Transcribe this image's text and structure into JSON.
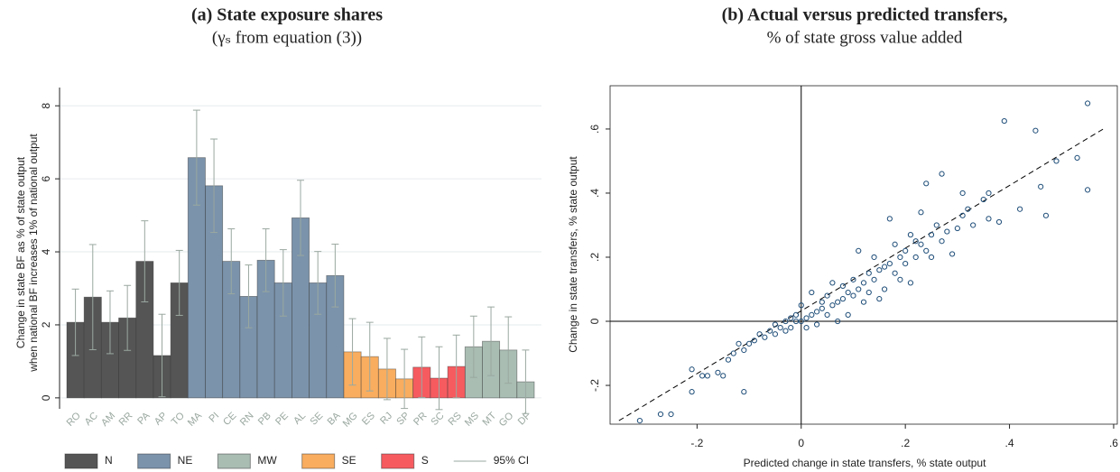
{
  "chart_data": [
    {
      "type": "bar",
      "title": "(a) State exposure shares",
      "subtitle": "(γₛ from equation (3))",
      "ylabel": [
        "Change in state BF as % of state output",
        "when national BF increases 1% of national output"
      ],
      "categories": [
        "RO",
        "AC",
        "AM",
        "RR",
        "PA",
        "AP",
        "TO",
        "MA",
        "PI",
        "CE",
        "RN",
        "PB",
        "PE",
        "AL",
        "SE",
        "BA",
        "MG",
        "ES",
        "RJ",
        "SP",
        "PR",
        "SC",
        "RS",
        "MS",
        "MT",
        "GO",
        "DF"
      ],
      "ylim": [
        -0.3,
        8.5
      ],
      "yticks": [
        0,
        2,
        4,
        6,
        8
      ],
      "grid": true,
      "ci_label": "95% CI",
      "ci_color": "#9aa8a0",
      "series": [
        {
          "name": "N",
          "color": "#555555",
          "values": [
            2.07,
            2.76,
            2.07,
            2.19,
            3.74,
            1.16,
            3.15,
            null,
            null,
            null,
            null,
            null,
            null,
            null,
            null,
            null,
            null,
            null,
            null,
            null,
            null,
            null,
            null,
            null,
            null,
            null,
            null
          ],
          "ci_low": [
            1.16,
            1.32,
            1.21,
            1.3,
            2.63,
            0.03,
            2.26,
            null,
            null,
            null,
            null,
            null,
            null,
            null,
            null,
            null,
            null,
            null,
            null,
            null,
            null,
            null,
            null,
            null,
            null,
            null,
            null
          ],
          "ci_high": [
            2.98,
            4.2,
            2.93,
            3.08,
            4.85,
            2.29,
            4.04,
            null,
            null,
            null,
            null,
            null,
            null,
            null,
            null,
            null,
            null,
            null,
            null,
            null,
            null,
            null,
            null,
            null,
            null,
            null,
            null
          ]
        },
        {
          "name": "NE",
          "color": "#7b93ab",
          "values": [
            null,
            null,
            null,
            null,
            null,
            null,
            null,
            6.58,
            5.81,
            3.74,
            2.78,
            3.77,
            3.15,
            4.93,
            3.15,
            3.35,
            null,
            null,
            null,
            null,
            null,
            null,
            null,
            null,
            null,
            null,
            null
          ],
          "ci_low": [
            null,
            null,
            null,
            null,
            null,
            null,
            null,
            5.28,
            4.53,
            2.85,
            1.92,
            2.91,
            2.24,
            3.9,
            2.29,
            2.49,
            null,
            null,
            null,
            null,
            null,
            null,
            null,
            null,
            null,
            null,
            null
          ],
          "ci_high": [
            null,
            null,
            null,
            null,
            null,
            null,
            null,
            7.88,
            7.09,
            4.63,
            3.64,
            4.63,
            4.06,
            5.96,
            4.01,
            4.21,
            null,
            null,
            null,
            null,
            null,
            null,
            null,
            null,
            null,
            null,
            null
          ]
        },
        {
          "name": "MW",
          "color": "#a9bdb3",
          "values": [
            null,
            null,
            null,
            null,
            null,
            null,
            null,
            null,
            null,
            null,
            null,
            null,
            null,
            null,
            null,
            null,
            null,
            null,
            null,
            null,
            null,
            null,
            null,
            1.4,
            1.55,
            1.31,
            0.44
          ],
          "ci_low": [
            null,
            null,
            null,
            null,
            null,
            null,
            null,
            null,
            null,
            null,
            null,
            null,
            null,
            null,
            null,
            null,
            null,
            null,
            null,
            null,
            null,
            null,
            null,
            0.56,
            0.61,
            0.4,
            -0.43
          ],
          "ci_high": [
            null,
            null,
            null,
            null,
            null,
            null,
            null,
            null,
            null,
            null,
            null,
            null,
            null,
            null,
            null,
            null,
            null,
            null,
            null,
            null,
            null,
            null,
            null,
            2.24,
            2.49,
            2.22,
            1.31
          ]
        },
        {
          "name": "SE",
          "color": "#f9ad5f",
          "values": [
            null,
            null,
            null,
            null,
            null,
            null,
            null,
            null,
            null,
            null,
            null,
            null,
            null,
            null,
            null,
            null,
            1.26,
            1.13,
            0.79,
            0.52,
            null,
            null,
            null,
            null,
            null,
            null,
            null
          ],
          "ci_low": [
            null,
            null,
            null,
            null,
            null,
            null,
            null,
            null,
            null,
            null,
            null,
            null,
            null,
            null,
            null,
            null,
            0.35,
            0.19,
            -0.05,
            -0.29,
            null,
            null,
            null,
            null,
            null,
            null,
            null
          ],
          "ci_high": [
            null,
            null,
            null,
            null,
            null,
            null,
            null,
            null,
            null,
            null,
            null,
            null,
            null,
            null,
            null,
            null,
            2.17,
            2.07,
            1.63,
            1.33,
            null,
            null,
            null,
            null,
            null,
            null,
            null
          ]
        },
        {
          "name": "S",
          "color": "#f65b60",
          "values": [
            null,
            null,
            null,
            null,
            null,
            null,
            null,
            null,
            null,
            null,
            null,
            null,
            null,
            null,
            null,
            null,
            null,
            null,
            null,
            null,
            0.84,
            0.54,
            0.86,
            null,
            null,
            null,
            null
          ],
          "ci_low": [
            null,
            null,
            null,
            null,
            null,
            null,
            null,
            null,
            null,
            null,
            null,
            null,
            null,
            null,
            null,
            null,
            null,
            null,
            null,
            null,
            0.01,
            -0.32,
            0.0,
            null,
            null,
            null,
            null
          ],
          "ci_high": [
            null,
            null,
            null,
            null,
            null,
            null,
            null,
            null,
            null,
            null,
            null,
            null,
            null,
            null,
            null,
            null,
            null,
            null,
            null,
            null,
            1.67,
            1.4,
            1.72,
            null,
            null,
            null,
            null
          ]
        }
      ]
    },
    {
      "type": "scatter",
      "title": "(b) Actual versus predicted transfers,",
      "subtitle": "% of state gross value added",
      "xlabel": "Predicted change in state transfers, % state output",
      "ylabel": "Change in state transfers, % state output",
      "xlim": [
        -0.367,
        0.607
      ],
      "ylim": [
        -0.321,
        0.735
      ],
      "xticks": [
        {
          "value": -0.2,
          "label": "-.2"
        },
        0,
        {
          "value": 0.2,
          "label": ".2"
        },
        {
          "value": 0.4,
          "label": ".4"
        },
        {
          "value": 0.6,
          "label": ".6"
        }
      ],
      "yticks": [
        {
          "value": -0.2,
          "label": "-.2"
        },
        0,
        {
          "value": 0.2,
          "label": ".2"
        },
        {
          "value": 0.4,
          "label": ".4"
        },
        {
          "value": 0.6,
          "label": ".6"
        }
      ],
      "zero_lines": true,
      "color": "#1f4e79",
      "fit_line": {
        "x": [
          -0.35,
          0.58
        ],
        "y": [
          -0.31,
          0.6
        ]
      },
      "x": [
        -0.31,
        -0.27,
        -0.25,
        -0.21,
        -0.21,
        -0.19,
        -0.18,
        -0.16,
        -0.14,
        -0.15,
        -0.13,
        -0.12,
        -0.11,
        -0.11,
        -0.1,
        -0.09,
        -0.08,
        -0.07,
        -0.06,
        -0.05,
        -0.05,
        -0.04,
        -0.03,
        -0.03,
        -0.02,
        -0.02,
        -0.01,
        -0.01,
        0.0,
        0.0,
        0.01,
        0.01,
        0.02,
        0.02,
        0.03,
        0.03,
        0.04,
        0.04,
        0.05,
        0.05,
        0.06,
        0.06,
        0.07,
        0.07,
        0.08,
        0.08,
        0.09,
        0.09,
        0.1,
        0.1,
        0.11,
        0.11,
        0.12,
        0.12,
        0.13,
        0.13,
        0.14,
        0.14,
        0.15,
        0.15,
        0.16,
        0.16,
        0.17,
        0.17,
        0.18,
        0.18,
        0.19,
        0.19,
        0.2,
        0.2,
        0.21,
        0.21,
        0.22,
        0.22,
        0.23,
        0.23,
        0.24,
        0.24,
        0.25,
        0.25,
        0.26,
        0.27,
        0.27,
        0.28,
        0.29,
        0.3,
        0.31,
        0.31,
        0.32,
        0.33,
        0.35,
        0.36,
        0.36,
        0.38,
        0.39,
        0.42,
        0.45,
        0.46,
        0.47,
        0.49,
        0.53,
        0.55,
        0.55
      ],
      "y": [
        -0.31,
        -0.29,
        -0.29,
        -0.15,
        -0.22,
        -0.17,
        -0.17,
        -0.16,
        -0.12,
        -0.17,
        -0.1,
        -0.07,
        -0.09,
        -0.22,
        -0.07,
        -0.06,
        -0.04,
        -0.05,
        -0.03,
        -0.01,
        -0.04,
        -0.02,
        0.0,
        -0.03,
        0.01,
        -0.02,
        0.0,
        0.02,
        0.0,
        0.05,
        0.01,
        -0.02,
        0.02,
        0.09,
        0.03,
        -0.01,
        0.04,
        0.06,
        0.02,
        0.08,
        0.05,
        0.12,
        0.06,
        0.0,
        0.07,
        0.11,
        0.02,
        0.09,
        0.08,
        0.13,
        0.22,
        0.1,
        0.12,
        0.06,
        0.15,
        0.09,
        0.13,
        0.2,
        0.16,
        0.07,
        0.17,
        0.1,
        0.32,
        0.18,
        0.24,
        0.15,
        0.2,
        0.13,
        0.22,
        0.18,
        0.27,
        0.12,
        0.25,
        0.2,
        0.24,
        0.34,
        0.43,
        0.22,
        0.27,
        0.2,
        0.3,
        0.46,
        0.25,
        0.28,
        0.21,
        0.29,
        0.4,
        0.33,
        0.35,
        0.3,
        0.38,
        0.4,
        0.32,
        0.31,
        0.625,
        0.35,
        0.595,
        0.42,
        0.33,
        0.5,
        0.51,
        0.41,
        0.68
      ]
    }
  ]
}
